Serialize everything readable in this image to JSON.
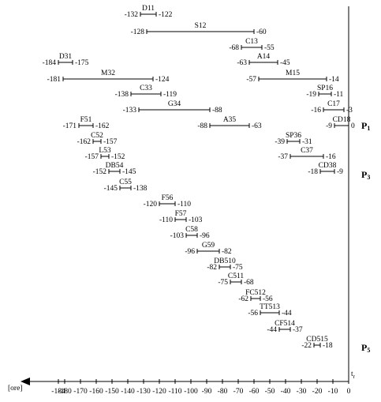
{
  "chart_data": {
    "type": "interval",
    "x_label": "[ore]",
    "corner_label": {
      "text": "t",
      "sub": "r"
    },
    "xlim": [
      -205,
      0
    ],
    "xticks": [
      -184,
      -180,
      -170,
      -160,
      -150,
      -140,
      -130,
      -120,
      -110,
      -100,
      -90,
      -80,
      -70,
      -60,
      -50,
      -40,
      -30,
      -20,
      -10,
      0
    ],
    "color": "#000000",
    "tasks": [
      {
        "name": "D11",
        "start": -132,
        "end": -122
      },
      {
        "name": "S12",
        "start": -128,
        "end": -60
      },
      {
        "name": "C13",
        "start": -68,
        "end": -55
      },
      {
        "name": "A14",
        "start": -63,
        "end": -45
      },
      {
        "name": "D31",
        "start": -184,
        "end": -175
      },
      {
        "name": "M15",
        "start": -57,
        "end": -14
      },
      {
        "name": "M32",
        "start": -181,
        "end": -124
      },
      {
        "name": "C33",
        "start": -138,
        "end": -119
      },
      {
        "name": "SP16",
        "start": -19,
        "end": -11
      },
      {
        "name": "G34",
        "start": -133,
        "end": -88
      },
      {
        "name": "C17",
        "start": -16,
        "end": -3
      },
      {
        "name": "CD18",
        "start": -9,
        "end": 0
      },
      {
        "name": "A35",
        "start": -88,
        "end": -63
      },
      {
        "name": "F51",
        "start": -171,
        "end": -162
      },
      {
        "name": "C52",
        "start": -162,
        "end": -157
      },
      {
        "name": "SP36",
        "start": -39,
        "end": -31
      },
      {
        "name": "L53",
        "start": -157,
        "end": -152
      },
      {
        "name": "C37",
        "start": -37,
        "end": -16
      },
      {
        "name": "DB54",
        "start": -152,
        "end": -145
      },
      {
        "name": "CD38",
        "start": -18,
        "end": -9
      },
      {
        "name": "C55",
        "start": -145,
        "end": -138
      },
      {
        "name": "F56",
        "start": -120,
        "end": -110
      },
      {
        "name": "F57",
        "start": -110,
        "end": -103
      },
      {
        "name": "C58",
        "start": -103,
        "end": -96
      },
      {
        "name": "G59",
        "start": -96,
        "end": -82
      },
      {
        "name": "DB510",
        "start": -82,
        "end": -75
      },
      {
        "name": "C511",
        "start": -75,
        "end": -68
      },
      {
        "name": "FC512",
        "start": -62,
        "end": -56
      },
      {
        "name": "TT513",
        "start": -56,
        "end": -44
      },
      {
        "name": "CF514",
        "start": -44,
        "end": -37
      },
      {
        "name": "CD515",
        "start": -22,
        "end": -18
      }
    ],
    "annotations": [
      {
        "text": "P",
        "sub": "1"
      },
      {
        "text": "P",
        "sub": "3"
      },
      {
        "text": "P",
        "sub": "5"
      }
    ]
  }
}
